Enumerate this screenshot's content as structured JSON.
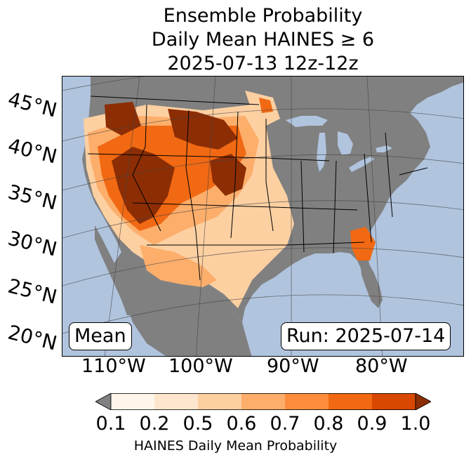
{
  "title": {
    "line1": "Ensemble Probability",
    "line2": "Daily Mean HAINES ≥ 6",
    "line3": "2025-07-13 12z-12z"
  },
  "map": {
    "ocean_color": "#b0c4de",
    "land_color": "#808080",
    "lat_labels": [
      "45°N",
      "40°N",
      "35°N",
      "30°N",
      "25°N",
      "20°N"
    ],
    "lon_labels": [
      "110°W",
      "100°W",
      "90°W",
      "80°W"
    ]
  },
  "annotations": {
    "stat": "Mean",
    "run": "Run: 2025-07-14"
  },
  "colorbar": {
    "ticks": [
      "0.1",
      "0.2",
      "0.5",
      "0.6",
      "0.7",
      "0.8",
      "0.9",
      "1.0"
    ],
    "colors": [
      "#fff5eb",
      "#fee6ce",
      "#fdd0a2",
      "#fdae6b",
      "#fd8d3c",
      "#f16913",
      "#d94801"
    ],
    "under_color": "#808080",
    "over_color": "#8c2d04",
    "label": "HAINES Daily Mean Probability"
  }
}
